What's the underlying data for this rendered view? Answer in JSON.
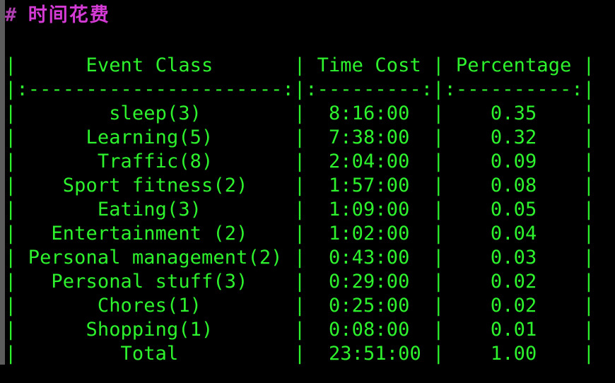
{
  "heading": {
    "marker": "#",
    "title": "时间花费"
  },
  "table": {
    "header_line": "|      Event Class       | Time Cost | Percentage |",
    "separator_line": "|:----------------------:|:---------:|:----------:|",
    "columns": [
      "Event Class",
      "Time Cost",
      "Percentage"
    ],
    "rows": [
      {
        "line": "|        sleep(3)        |  8:16:00  |    0.35    |",
        "event": "sleep(3)",
        "time": "8:16:00",
        "pct": "0.35"
      },
      {
        "line": "|      Learning(5)       |  7:38:00  |    0.32    |",
        "event": "Learning(5)",
        "time": "7:38:00",
        "pct": "0.32"
      },
      {
        "line": "|       Traffic(8)       |  2:04:00  |    0.09    |",
        "event": "Traffic(8)",
        "time": "2:04:00",
        "pct": "0.09"
      },
      {
        "line": "|    Sport fitness(2)    |  1:57:00  |    0.08    |",
        "event": "Sport fitness(2)",
        "time": "1:57:00",
        "pct": "0.08"
      },
      {
        "line": "|       Eating(3)        |  1:09:00  |    0.05    |",
        "event": "Eating(3)",
        "time": "1:09:00",
        "pct": "0.05"
      },
      {
        "line": "|   Entertainment (2)    |  1:02:00  |    0.04    |",
        "event": "Entertainment (2)",
        "time": "1:02:00",
        "pct": "0.04"
      },
      {
        "line": "| Personal management(2) |  0:43:00  |    0.03    |",
        "event": "Personal management(2)",
        "time": "0:43:00",
        "pct": "0.03"
      },
      {
        "line": "|   Personal stuff(3)    |  0:29:00  |    0.02    |",
        "event": "Personal stuff(3)",
        "time": "0:29:00",
        "pct": "0.02"
      },
      {
        "line": "|       Chores(1)        |  0:25:00  |    0.02    |",
        "event": "Chores(1)",
        "time": "0:25:00",
        "pct": "0.02"
      },
      {
        "line": "|      Shopping(1)       |  0:08:00  |    0.01    |",
        "event": "Shopping(1)",
        "time": "0:08:00",
        "pct": "0.01"
      },
      {
        "line": "|         Total          |  23:51:00 |    1.00    |",
        "event": "Total",
        "time": "23:51:00",
        "pct": "1.00"
      }
    ]
  },
  "colors": {
    "background": "#000000",
    "text": "#2df22d",
    "heading": "#d43ad4",
    "gutter": "#5c5c5c"
  }
}
